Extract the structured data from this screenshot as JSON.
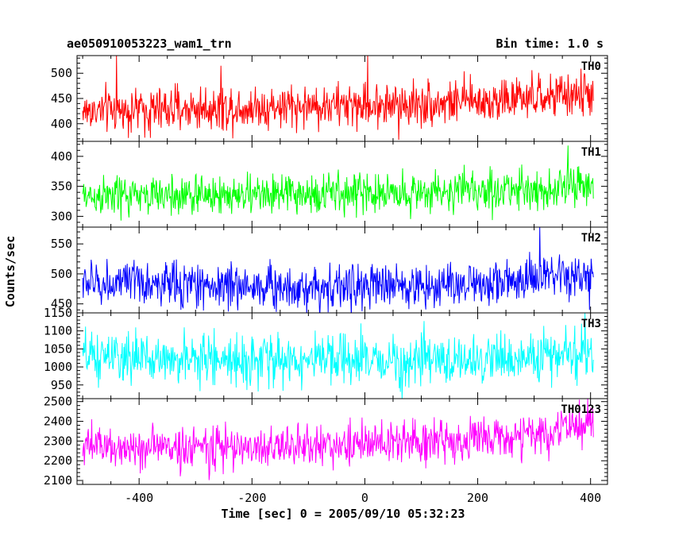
{
  "chart_data": {
    "type": "line",
    "title": "ae050910053223_wam1_trn",
    "bin_time_label": "Bin time: 1.0 s",
    "xlabel": "Time [sec] 0 = 2005/09/10 05:32:23",
    "ylabel": "Counts/sec",
    "xlim": [
      -510,
      430
    ],
    "x_ticks": [
      -400,
      -200,
      0,
      200,
      400
    ],
    "grid": false,
    "panels": [
      {
        "name": "TH0",
        "color": "#ff0000",
        "ylim": [
          365,
          535
        ],
        "y_ticks": [
          400,
          450,
          500
        ],
        "trend": [
          [
            -500,
            425
          ],
          [
            -300,
            430
          ],
          [
            -100,
            435
          ],
          [
            100,
            440
          ],
          [
            300,
            450
          ],
          [
            400,
            460
          ]
        ],
        "noise_sd": 22,
        "spikes": [
          [
            -440,
            535
          ],
          [
            -255,
            515
          ],
          [
            5,
            535
          ],
          [
            -380,
            372
          ],
          [
            60,
            368
          ]
        ]
      },
      {
        "name": "TH1",
        "color": "#00ff00",
        "ylim": [
          282,
          425
        ],
        "y_ticks": [
          300,
          350,
          400
        ],
        "trend": [
          [
            -500,
            333
          ],
          [
            -200,
            336
          ],
          [
            100,
            340
          ],
          [
            300,
            345
          ],
          [
            400,
            350
          ]
        ],
        "noise_sd": 17,
        "spikes": [
          [
            360,
            418
          ]
        ]
      },
      {
        "name": "TH2",
        "color": "#0000ff",
        "ylim": [
          435,
          578
        ],
        "y_ticks": [
          450,
          500,
          550
        ],
        "trend": [
          [
            -500,
            485
          ],
          [
            -300,
            482
          ],
          [
            -100,
            478
          ],
          [
            100,
            480
          ],
          [
            300,
            490
          ],
          [
            400,
            495
          ]
        ],
        "noise_sd": 19,
        "spikes": [
          [
            310,
            578
          ],
          [
            398,
            440
          ]
        ]
      },
      {
        "name": "TH3",
        "color": "#00ffff",
        "ylim": [
          912,
          1150
        ],
        "y_ticks": [
          950,
          1000,
          1050,
          1100,
          1150
        ],
        "trend": [
          [
            -500,
            1025
          ],
          [
            -200,
            1020
          ],
          [
            100,
            1015
          ],
          [
            300,
            1025
          ],
          [
            400,
            1040
          ]
        ],
        "noise_sd": 35,
        "spikes": [
          [
            390,
            1150
          ]
        ]
      },
      {
        "name": "TH0123",
        "color": "#ff00ff",
        "ylim": [
          2080,
          2515
        ],
        "y_ticks": [
          2100,
          2200,
          2300,
          2400,
          2500
        ],
        "trend": [
          [
            -500,
            2270
          ],
          [
            -200,
            2265
          ],
          [
            0,
            2285
          ],
          [
            200,
            2310
          ],
          [
            300,
            2330
          ],
          [
            400,
            2380
          ]
        ],
        "noise_sd": 55,
        "spikes": [
          [
            395,
            2515
          ],
          [
            380,
            2510
          ]
        ]
      }
    ]
  }
}
